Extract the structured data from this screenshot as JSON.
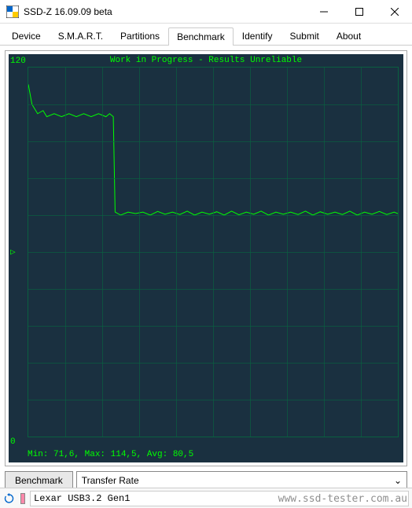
{
  "window": {
    "title": "SSD-Z 16.09.09 beta"
  },
  "tabs": [
    "Device",
    "S.M.A.R.T.",
    "Partitions",
    "Benchmark",
    "Identify",
    "Submit",
    "About"
  ],
  "active_tab_index": 3,
  "chart": {
    "type": "line",
    "background_color": "#1a3040",
    "grid_color": "#0a6040",
    "line_color": "#00ff00",
    "text_color": "#00ff00",
    "title": "Work in Progress - Results Unreliable",
    "ylim": [
      0,
      120
    ],
    "ytick_top": "120",
    "ytick_bot": "0",
    "ymarker_value": 60,
    "y_marker_symbol": "▷",
    "stats": "Min: 71,6, Max: 114,5, Avg: 80,5",
    "series": {
      "x_range": [
        0,
        100
      ],
      "points": [
        [
          0,
          114.5
        ],
        [
          1,
          108
        ],
        [
          2.5,
          105
        ],
        [
          4,
          106
        ],
        [
          5,
          104
        ],
        [
          7,
          105
        ],
        [
          9,
          104
        ],
        [
          11,
          105
        ],
        [
          13,
          104
        ],
        [
          15,
          105
        ],
        [
          17,
          104
        ],
        [
          19,
          105
        ],
        [
          21,
          104
        ],
        [
          22,
          105
        ],
        [
          23,
          104
        ],
        [
          23.5,
          73
        ],
        [
          25,
          72
        ],
        [
          27,
          73
        ],
        [
          29,
          72.5
        ],
        [
          31,
          73
        ],
        [
          33,
          72
        ],
        [
          35,
          73.2
        ],
        [
          37,
          72.3
        ],
        [
          39,
          73
        ],
        [
          41,
          72.2
        ],
        [
          43,
          73.3
        ],
        [
          45,
          72
        ],
        [
          47,
          73
        ],
        [
          49,
          72.3
        ],
        [
          51,
          73.1
        ],
        [
          53,
          72
        ],
        [
          55,
          73.3
        ],
        [
          57,
          72.1
        ],
        [
          59,
          73
        ],
        [
          61,
          72.3
        ],
        [
          63,
          73.3
        ],
        [
          65,
          72
        ],
        [
          67,
          73
        ],
        [
          69,
          72.3
        ],
        [
          71,
          73
        ],
        [
          73,
          72.2
        ],
        [
          75,
          73.3
        ],
        [
          77,
          72
        ],
        [
          79,
          73.1
        ],
        [
          81,
          72.3
        ],
        [
          83,
          73
        ],
        [
          85,
          72.2
        ],
        [
          87,
          73.3
        ],
        [
          89,
          72
        ],
        [
          91,
          73
        ],
        [
          93,
          72.3
        ],
        [
          95,
          73.2
        ],
        [
          97,
          72.2
        ],
        [
          99,
          73
        ],
        [
          100,
          72.5
        ]
      ]
    },
    "grid_v_count": 10,
    "grid_h_count": 10
  },
  "buttons": {
    "benchmark": "Benchmark",
    "dropdown_value": "Transfer Rate"
  },
  "status": {
    "device": "Lexar USB3.2 Gen1"
  },
  "watermark": "www.ssd-tester.com.au"
}
